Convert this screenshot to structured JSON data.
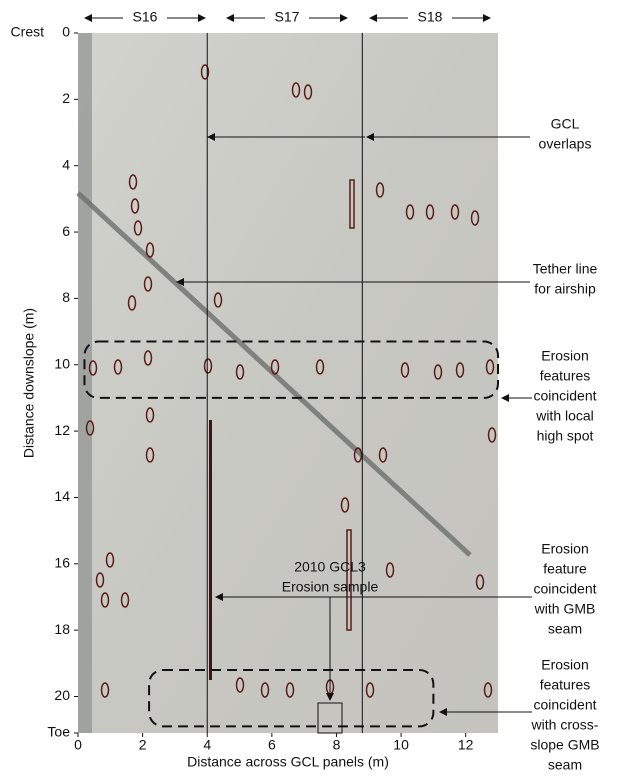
{
  "chart_data": {
    "type": "photo-annotation",
    "x_label": "Distance across GCL panels (m)",
    "y_label": "Distance downslope (m)",
    "xlim": [
      0,
      13
    ],
    "ylim": [
      0,
      21.1
    ],
    "xticks": [
      0,
      2,
      4,
      6,
      8,
      10,
      12
    ],
    "yticks": [
      0,
      2,
      4,
      6,
      8,
      10,
      12,
      14,
      16,
      18,
      20,
      {
        "value": 21.1,
        "label": "Toe"
      }
    ],
    "crest_label": "Crest",
    "panels": [
      "S16",
      "S17",
      "S18"
    ],
    "overlap_lines": [
      4,
      8.8
    ],
    "highlight_boxes": [
      {
        "x": [
          0.2,
          13
        ],
        "y": [
          9.3,
          11
        ]
      },
      {
        "x": [
          2.2,
          11
        ],
        "y": [
          19.2,
          20.9
        ]
      }
    ],
    "annotations": [
      {
        "lines": [
          "GCL",
          "overlaps"
        ]
      },
      {
        "lines": [
          "Tether line",
          "for airship"
        ]
      },
      {
        "lines": [
          "Erosion",
          "features",
          "coincident",
          "with local",
          "high spot"
        ]
      },
      {
        "lines": [
          "Erosion",
          "feature",
          "coincident",
          "with GMB",
          "seam"
        ]
      },
      {
        "lines": [
          "Erosion",
          "features",
          "coincident",
          "with cross-",
          "slope GMB",
          "seam"
        ]
      },
      {
        "lines": [
          "2010 GCL3",
          "Erosion sample"
        ]
      }
    ]
  }
}
